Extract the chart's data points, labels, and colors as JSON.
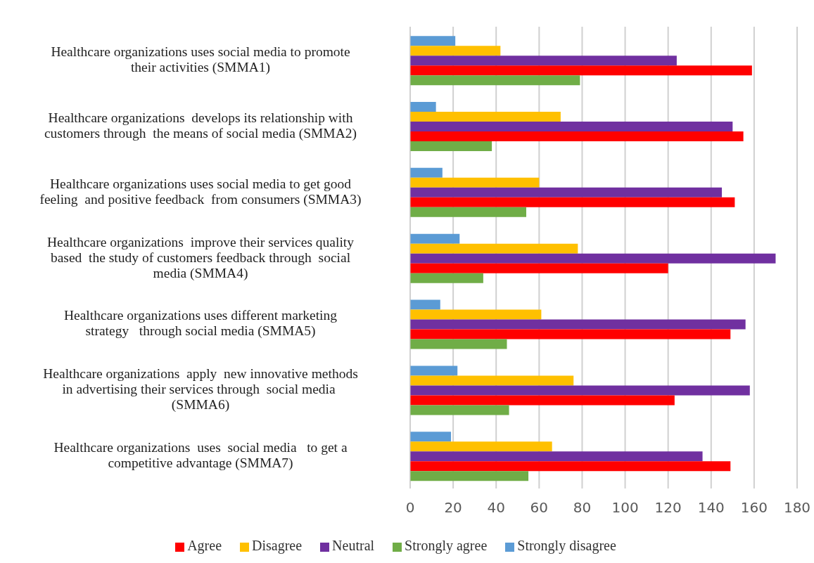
{
  "chart_data": {
    "type": "bar",
    "orientation": "horizontal",
    "categories": [
      "Healthcare organizations uses social media to promote their activities (SMMA1)",
      "Healthcare organizations  develops its relationship with customers through  the means of social media (SMMA2)",
      "Healthcare organizations uses social media to get good feeling  and positive feedback  from consumers (SMMA3)",
      "Healthcare organizations  improve their services quality based  the study of customers feedback through  social media (SMMA4)",
      "Healthcare organizations uses different marketing strategy   through social media (SMMA5)",
      "Healthcare organizations  apply  new innovative methods in advertising their services through  social media  (SMMA6)",
      "Healthcare organizations  uses  social media   to get a competitive advantage (SMMA7)"
    ],
    "series": [
      {
        "name": "Strongly disagree",
        "color": "#5b9bd5",
        "values": [
          21,
          12,
          15,
          23,
          14,
          22,
          19
        ]
      },
      {
        "name": "Disagree",
        "color": "#ffc000",
        "values": [
          42,
          70,
          60,
          78,
          61,
          76,
          66
        ]
      },
      {
        "name": "Neutral",
        "color": "#7030a0",
        "values": [
          124,
          150,
          145,
          170,
          156,
          158,
          136
        ]
      },
      {
        "name": "Agree",
        "color": "#ff0000",
        "values": [
          159,
          155,
          151,
          120,
          149,
          123,
          149
        ]
      },
      {
        "name": "Strongly agree",
        "color": "#70ad47",
        "values": [
          79,
          38,
          54,
          34,
          45,
          46,
          55
        ]
      }
    ],
    "xlim": [
      0,
      180
    ],
    "xticks": [
      0,
      20,
      40,
      60,
      80,
      100,
      120,
      140,
      160,
      180
    ],
    "grid": "x",
    "legend": "bottom"
  }
}
